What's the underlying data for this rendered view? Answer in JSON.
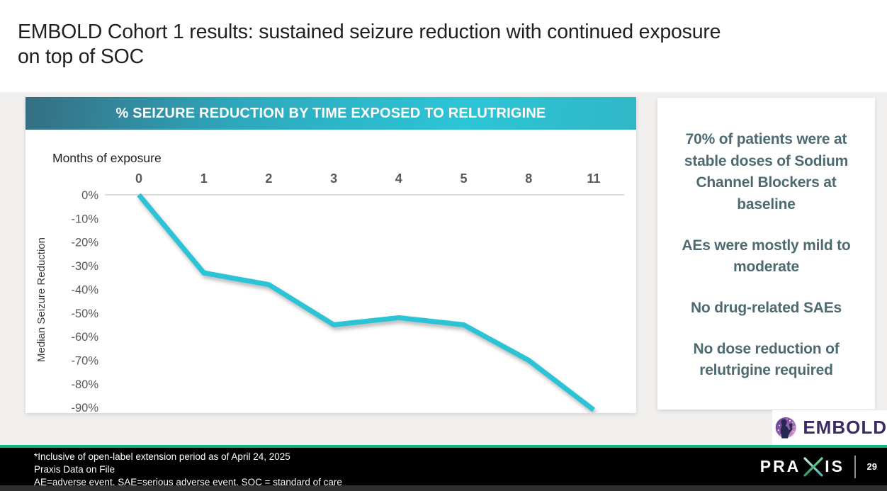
{
  "slide": {
    "title_line1": "EMBOLD Cohort 1 results: sustained seizure reduction with continued exposure",
    "title_line2": "on top of SOC"
  },
  "chart_data": {
    "type": "line",
    "title": "% SEIZURE REDUCTION BY TIME EXPOSED TO RELUTRIGINE",
    "xlabel": "Months of exposure",
    "ylabel": "Median Seizure Reduction",
    "categories": [
      "0",
      "1",
      "2",
      "3",
      "4",
      "5",
      "8",
      "11"
    ],
    "values": [
      0,
      -33,
      -38,
      -55,
      -52,
      -55,
      -70,
      -91
    ],
    "y_ticks": [
      "0%",
      "-10%",
      "-20%",
      "-30%",
      "-40%",
      "-50%",
      "-60%",
      "-70%",
      "-80%",
      "-90%"
    ],
    "ylim": [
      -92,
      0
    ],
    "grid": "baseline-only",
    "legend_position": "none",
    "line_color": "#2bc4d6"
  },
  "sidebar": {
    "items": [
      "70% of patients were at stable doses of Sodium Channel Blockers at baseline",
      "AEs were mostly mild to moderate",
      "No drug-related SAEs",
      "No dose reduction of relutrigine required"
    ]
  },
  "logos": {
    "embold_label": "EMBOLD",
    "embold_icon": "parent-child-stars-icon",
    "praxis_left": "PRA",
    "praxis_right": "IS",
    "praxis_x_icon": "praxis-x-icon"
  },
  "footer": {
    "notes": [
      "*Inclusive of open-label extension period as of April 24, 2025",
      "Praxis Data on File",
      "AE=adverse event, SAE=serious adverse event, SOC = standard of care"
    ],
    "page_number": "29"
  },
  "colors": {
    "accent_line": "#2bc4d6",
    "header_gradient_start": "#356e81",
    "header_gradient_mid": "#2cc5d6",
    "divider_green": "#10b583",
    "sidebar_text": "#4e6a71",
    "embold_purple": "#3a2b63",
    "axis_text": "#58595b"
  }
}
